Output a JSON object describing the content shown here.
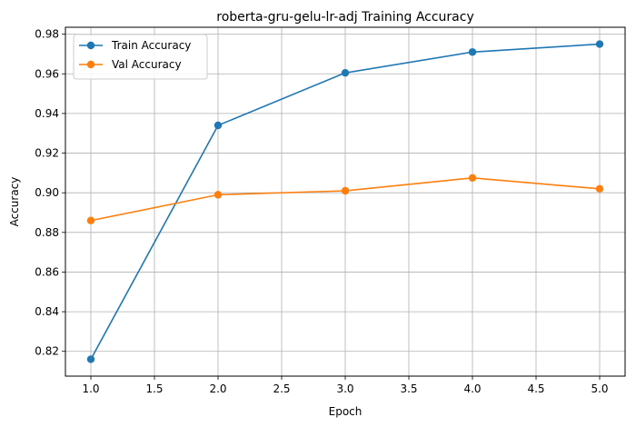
{
  "chart_data": {
    "type": "line",
    "title": "roberta-gru-gelu-lr-adj Training Accuracy",
    "xlabel": "Epoch",
    "ylabel": "Accuracy",
    "x": [
      1,
      2,
      3,
      4,
      5
    ],
    "xlim": [
      0.8,
      5.2
    ],
    "ylim": [
      0.8075,
      0.9835
    ],
    "xticks": [
      "1.0",
      "1.5",
      "2.0",
      "2.5",
      "3.0",
      "3.5",
      "4.0",
      "4.5",
      "5.0"
    ],
    "yticks": [
      "0.82",
      "0.84",
      "0.86",
      "0.88",
      "0.90",
      "0.92",
      "0.94",
      "0.96",
      "0.98"
    ],
    "grid": true,
    "legend_position": "top-left",
    "series": [
      {
        "name": "Train Accuracy",
        "color": "#1f77b4",
        "marker": "circle",
        "values": [
          0.816,
          0.934,
          0.9605,
          0.971,
          0.975
        ]
      },
      {
        "name": "Val Accuracy",
        "color": "#ff7f0e",
        "marker": "circle",
        "values": [
          0.886,
          0.899,
          0.901,
          0.9075,
          0.902
        ]
      }
    ]
  }
}
